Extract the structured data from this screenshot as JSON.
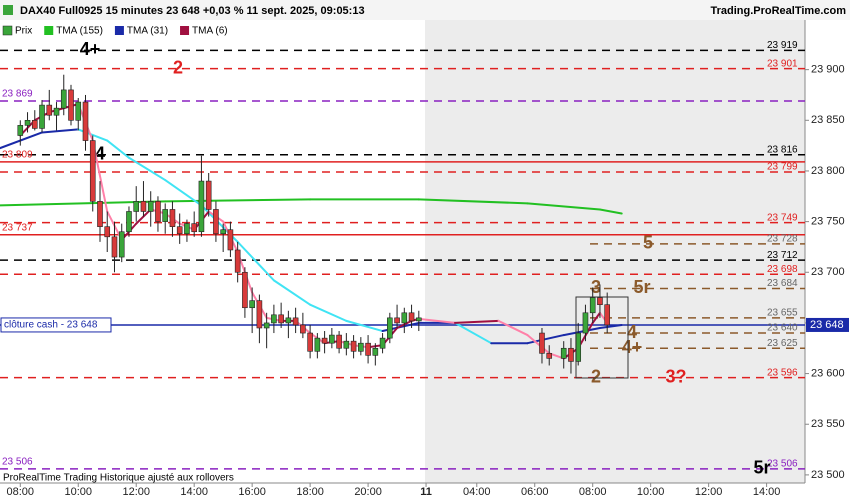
{
  "header": {
    "title": "DAX40 Full0925 15 minutes 23 648 +0,03 % 11 sept. 2025, 09:05:13",
    "site": "Trading.ProRealTime.com"
  },
  "footer": "ProRealTime Trading  Historique ajusté aux rollovers",
  "chart_data": {
    "type": "candlestick",
    "xlim": [
      -2.8,
      108.3
    ],
    "ylim": [
      23492,
      23949
    ],
    "xticks": [
      {
        "value": 0,
        "label": "08:00"
      },
      {
        "value": 8,
        "label": "10:00"
      },
      {
        "value": 16,
        "label": "12:00"
      },
      {
        "value": 24,
        "label": "14:00"
      },
      {
        "value": 32,
        "label": "16:00"
      },
      {
        "value": 40,
        "label": "18:00"
      },
      {
        "value": 48,
        "label": "20:00"
      },
      {
        "value": 56,
        "label": "11"
      },
      {
        "value": 63,
        "label": "04:00"
      },
      {
        "value": 71,
        "label": "06:00"
      },
      {
        "value": 79,
        "label": "08:00"
      },
      {
        "value": 87,
        "label": "10:00"
      },
      {
        "value": 95,
        "label": "12:00"
      },
      {
        "value": 103,
        "label": "14:00"
      }
    ],
    "yticks": [
      {
        "value": 23500,
        "label": "23 500"
      },
      {
        "value": 23550,
        "label": "23 550"
      },
      {
        "value": 23600,
        "label": "23 600"
      },
      {
        "value": 23650,
        "label": "23 650"
      },
      {
        "value": 23700,
        "label": "23 700"
      },
      {
        "value": 23750,
        "label": "23 750"
      },
      {
        "value": 23800,
        "label": "23 800"
      },
      {
        "value": 23850,
        "label": "23 850"
      },
      {
        "value": 23900,
        "label": "23 900"
      }
    ],
    "candles": {
      "name": "Prix",
      "up_color": "#3aa53a",
      "down_color": "#d83a3a",
      "x": [
        0,
        1,
        2,
        3,
        4,
        5,
        6,
        7,
        8,
        9,
        10,
        11,
        12,
        13,
        14,
        15,
        16,
        17,
        18,
        19,
        20,
        21,
        22,
        23,
        24,
        25,
        26,
        27,
        28,
        29,
        30,
        31,
        32,
        33,
        34,
        35,
        36,
        37,
        38,
        39,
        40,
        41,
        42,
        43,
        44,
        45,
        46,
        47,
        48,
        49,
        50,
        51,
        52,
        53,
        54,
        55,
        72,
        73,
        75,
        76,
        77,
        78,
        79,
        80,
        81
      ],
      "open": [
        23835,
        23845,
        23850,
        23842,
        23865,
        23855,
        23862,
        23880,
        23850,
        23868,
        23830,
        23770,
        23745,
        23735,
        23715,
        23740,
        23760,
        23770,
        23760,
        23770,
        23750,
        23762,
        23745,
        23738,
        23748,
        23740,
        23790,
        23762,
        23738,
        23742,
        23722,
        23700,
        23665,
        23672,
        23645,
        23650,
        23658,
        23650,
        23655,
        23648,
        23640,
        23622,
        23635,
        23630,
        23638,
        23625,
        23632,
        23622,
        23630,
        23618,
        23625,
        23635,
        23655,
        23650,
        23660,
        23652,
        23640,
        23620,
        23615,
        23625,
        23612,
        23640,
        23660,
        23675,
        23668
      ],
      "high": [
        23850,
        23858,
        23860,
        23870,
        23880,
        23868,
        23895,
        23885,
        23872,
        23875,
        23835,
        23790,
        23760,
        23750,
        23748,
        23765,
        23785,
        23790,
        23780,
        23775,
        23768,
        23770,
        23758,
        23752,
        23760,
        23815,
        23798,
        23770,
        23748,
        23750,
        23730,
        23705,
        23685,
        23678,
        23660,
        23668,
        23670,
        23662,
        23665,
        23660,
        23648,
        23640,
        23642,
        23645,
        23642,
        23640,
        23638,
        23636,
        23638,
        23630,
        23640,
        23660,
        23668,
        23665,
        23668,
        23662,
        23645,
        23628,
        23632,
        23635,
        23650,
        23668,
        23685,
        23688,
        23680
      ],
      "low": [
        23825,
        23838,
        23840,
        23838,
        23850,
        23840,
        23855,
        23845,
        23840,
        23820,
        23760,
        23730,
        23720,
        23700,
        23710,
        23735,
        23750,
        23755,
        23745,
        23740,
        23738,
        23735,
        23728,
        23730,
        23735,
        23735,
        23755,
        23730,
        23720,
        23715,
        23690,
        23655,
        23640,
        23630,
        23625,
        23640,
        23645,
        23635,
        23640,
        23635,
        23615,
        23615,
        23620,
        23625,
        23620,
        23618,
        23615,
        23618,
        23610,
        23608,
        23620,
        23630,
        23645,
        23640,
        23645,
        23642,
        23610,
        23608,
        23605,
        23600,
        23608,
        23632,
        23650,
        23655,
        23640
      ],
      "close": [
        23845,
        23850,
        23842,
        23865,
        23855,
        23862,
        23880,
        23850,
        23868,
        23830,
        23770,
        23745,
        23735,
        23715,
        23740,
        23760,
        23770,
        23760,
        23770,
        23750,
        23762,
        23745,
        23738,
        23748,
        23740,
        23790,
        23762,
        23738,
        23742,
        23722,
        23700,
        23665,
        23672,
        23645,
        23650,
        23658,
        23650,
        23655,
        23648,
        23640,
        23622,
        23635,
        23630,
        23638,
        23625,
        23632,
        23622,
        23630,
        23618,
        23625,
        23635,
        23655,
        23650,
        23660,
        23652,
        23655,
        23620,
        23615,
        23625,
        23612,
        23640,
        23660,
        23675,
        23668,
        23648
      ]
    },
    "series": [
      {
        "name": "TMA (155)",
        "color": "#22c022",
        "x": [
          -3,
          20,
          40,
          55,
          70,
          80,
          83
        ],
        "values": [
          23766,
          23770,
          23772,
          23772,
          23768,
          23762,
          23758
        ]
      },
      {
        "name": "TMA (31)",
        "color": "#1a2aa8",
        "falling_color": "#40e4f4",
        "x": [
          -3,
          3,
          8,
          12,
          15,
          20,
          25,
          30,
          35,
          40,
          45,
          50,
          55,
          60,
          65,
          70,
          75,
          80,
          83
        ],
        "values": [
          23822,
          23838,
          23841,
          23830,
          23813,
          23791,
          23766,
          23730,
          23692,
          23668,
          23652,
          23642,
          23650,
          23650,
          23630,
          23630,
          23638,
          23645,
          23648
        ]
      },
      {
        "name": "TMA (6)",
        "color": "#a01040",
        "falling_color": "#ff80a8",
        "x": [
          0,
          2,
          4,
          6,
          8,
          10,
          12,
          14,
          16,
          18,
          20,
          22,
          24,
          26,
          28,
          30,
          32,
          34,
          36,
          38,
          40,
          42,
          44,
          46,
          48,
          50,
          52,
          54,
          55,
          60,
          66,
          70,
          73,
          75,
          77,
          79,
          80,
          81
        ],
        "values": [
          23835,
          23850,
          23858,
          23862,
          23866,
          23830,
          23760,
          23732,
          23748,
          23762,
          23758,
          23748,
          23742,
          23760,
          23750,
          23720,
          23680,
          23655,
          23652,
          23652,
          23640,
          23630,
          23632,
          23628,
          23626,
          23628,
          23645,
          23652,
          23654,
          23650,
          23652,
          23638,
          23620,
          23615,
          23625,
          23650,
          23660,
          23650
        ]
      }
    ],
    "levels": [
      {
        "value": 23919,
        "label": "23 919",
        "color": "#000000",
        "dashed": true,
        "notes": [
          {
            "text": "4+",
            "color": "#000000"
          }
        ]
      },
      {
        "value": 23901,
        "label": "23 901",
        "color": "#e02020",
        "dashed": true,
        "notes": [
          {
            "text": "2",
            "color": "#e02020"
          }
        ]
      },
      {
        "value": 23869,
        "left_label": "23 869",
        "color": "#8a20c0",
        "dashed": true
      },
      {
        "value": 23816,
        "label": "23 816",
        "color": "#000000",
        "dashed": true,
        "notes": [
          {
            "text": "4",
            "color": "#000000"
          }
        ]
      },
      {
        "value": 23809,
        "left_label": "23 809",
        "color": "#e02020",
        "dashed": false
      },
      {
        "value": 23799,
        "label": "23 799",
        "color": "#e02020",
        "dashed": true
      },
      {
        "value": 23749,
        "label": "23 749",
        "color": "#e02020",
        "dashed": true
      },
      {
        "value": 23737,
        "left_label": "23 737",
        "color": "#e02020",
        "dashed": false
      },
      {
        "value": 23728,
        "label": "23 728",
        "color": "#8b5a2b",
        "dashed": true,
        "notes": [
          {
            "text": "5",
            "color": "#8b5a2b"
          }
        ]
      },
      {
        "value": 23712,
        "label": "23 712",
        "color": "#000000",
        "dashed": true
      },
      {
        "value": 23698,
        "label": "23 698",
        "color": "#e02020",
        "dashed": true
      },
      {
        "value": 23684,
        "label": "23 684",
        "color": "#8b5a2b",
        "dashed": true,
        "notes": [
          {
            "text": "3",
            "color": "#8b5a2b"
          },
          {
            "text": "5r",
            "color": "#8b5a2b"
          }
        ]
      },
      {
        "value": 23655,
        "label": "23 655",
        "color": "#8b5a2b",
        "dashed": true
      },
      {
        "value": 23648,
        "label": "23 648",
        "left_label": "clôture cash -  23 648",
        "color": "#1a2aa8",
        "dashed": false
      },
      {
        "value": 23640,
        "label": "23 640",
        "color": "#8b5a2b",
        "dashed": true,
        "notes": [
          {
            "text": "4",
            "color": "#8b5a2b"
          }
        ]
      },
      {
        "value": 23625,
        "label": "23 625",
        "color": "#8b5a2b",
        "dashed": true,
        "notes": [
          {
            "text": "4+",
            "color": "#8b5a2b"
          }
        ]
      },
      {
        "value": 23596,
        "label": "23 596",
        "color": "#e02020",
        "dashed": true,
        "notes": [
          {
            "text": "2",
            "color": "#8b5a2b"
          },
          {
            "text": "3?",
            "color": "#e02020"
          }
        ]
      },
      {
        "value": 23506,
        "label": "23 506",
        "left_label": "23 506",
        "color": "#8a20c0",
        "dashed": true,
        "notes": [
          {
            "text": "5r",
            "color": "#000000"
          }
        ]
      }
    ]
  }
}
